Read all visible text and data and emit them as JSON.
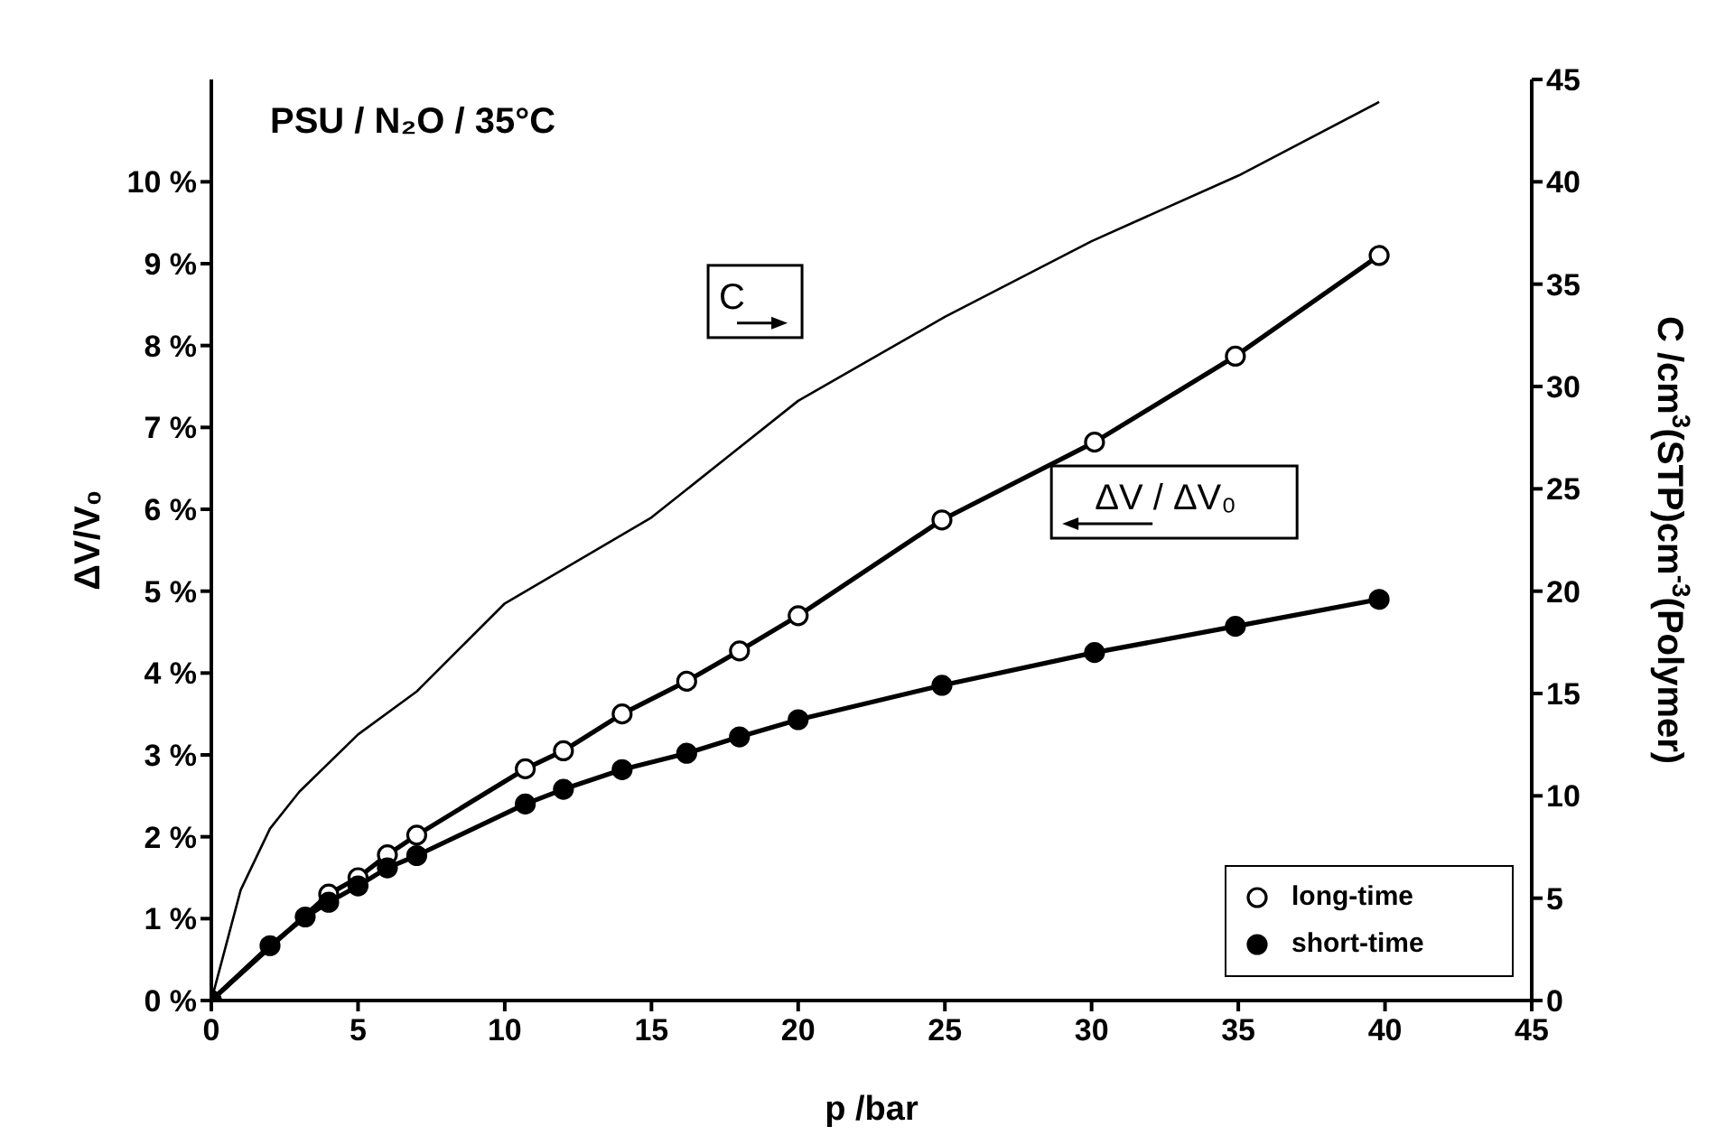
{
  "chart_data": {
    "type": "line",
    "xlabel": "p /bar",
    "ylabel": "ΔV/V₀",
    "y2label": "C /cm$^{3}$(STP)cm$^{-3}$(Polymer)",
    "annotations": [
      "PSU / N₂O / 35°C",
      "C",
      "ΔV / ΔV₀"
    ],
    "xlim": [
      0,
      45
    ],
    "xticks": [
      0,
      5,
      10,
      15,
      20,
      25,
      30,
      35,
      40,
      45
    ],
    "ylim": [
      0,
      11.25
    ],
    "yticks": [
      {
        "value": 0,
        "label": "0 %"
      },
      {
        "value": 1,
        "label": "1 %"
      },
      {
        "value": 2,
        "label": "2 %"
      },
      {
        "value": 3,
        "label": "3 %"
      },
      {
        "value": 4,
        "label": "4 %"
      },
      {
        "value": 5,
        "label": "5 %"
      },
      {
        "value": 6,
        "label": "6 %"
      },
      {
        "value": 7,
        "label": "7 %"
      },
      {
        "value": 8,
        "label": "8 %"
      },
      {
        "value": 9,
        "label": "9 %"
      },
      {
        "value": 10,
        "label": "10 %"
      }
    ],
    "y2lim": [
      0,
      45
    ],
    "y2ticks": [
      0,
      5,
      10,
      15,
      20,
      25,
      30,
      35,
      40,
      45
    ],
    "grid": false,
    "legend": "bottom right",
    "series": [
      {
        "name": "long-time",
        "color": "#000000",
        "marker": "circle",
        "x": [
          0,
          4,
          5,
          6,
          7,
          10.7,
          12,
          14,
          16.2,
          18,
          20,
          24.9,
          30.1,
          34.9,
          39.8
        ],
        "values": [
          0,
          1.3,
          1.5,
          1.78,
          2.02,
          2.83,
          3.05,
          3.5,
          3.9,
          4.27,
          4.7,
          5.87,
          6.82,
          7.87,
          9.1
        ]
      },
      {
        "name": "short-time",
        "color": "#000000",
        "marker": "circle",
        "x": [
          0,
          2,
          3.2,
          4,
          5,
          6,
          7,
          10.7,
          12,
          14,
          16.2,
          18,
          20,
          24.9,
          30.1,
          34.9,
          39.8
        ],
        "values": [
          0,
          0.67,
          1.02,
          1.2,
          1.4,
          1.62,
          1.77,
          2.4,
          2.58,
          2.82,
          3.02,
          3.22,
          3.43,
          3.85,
          4.25,
          4.57,
          4.9
        ]
      },
      {
        "color": "#000000",
        "marker": "none",
        "axis": "y2",
        "x": [
          0,
          1,
          2,
          3,
          5,
          7,
          10,
          15,
          20,
          25,
          30,
          35,
          39.8
        ],
        "values": [
          0,
          5.4,
          8.4,
          10.2,
          13,
          15.1,
          19.4,
          23.6,
          29.3,
          33.4,
          37.1,
          40.3,
          43.9
        ]
      }
    ]
  }
}
